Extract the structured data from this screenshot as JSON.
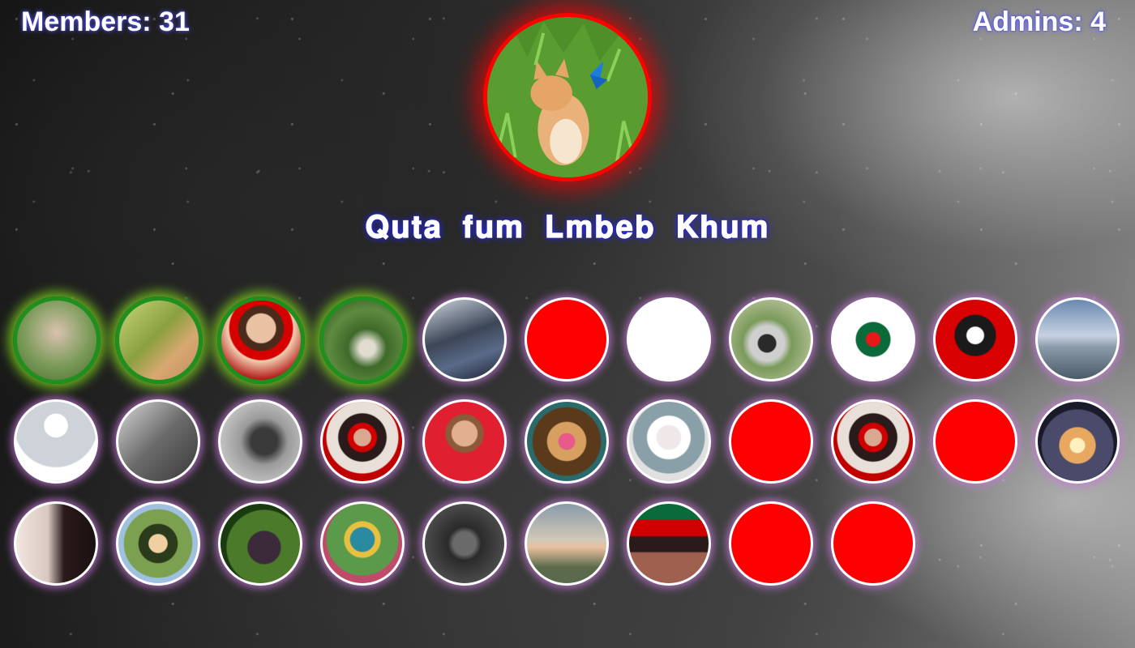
{
  "stats": {
    "members_label": "Members: 31",
    "admins_label": "Admins: 4"
  },
  "group": {
    "name": "𝐐𝐮𝐭𝐚 𝐟𝐮𝐦 𝐋𝐦𝐛𝐞𝐛 𝐊𝐡𝐮𝐦",
    "avatar_icon": "kitten-butterfly-photo-icon"
  },
  "colors": {
    "admin_ring": "#1f8f1f",
    "member_ring": "#ffffff",
    "group_ring": "#ff0000",
    "text_glow": "#2a2aff"
  },
  "admins": [
    {
      "icon": "girl-in-garden-photo"
    },
    {
      "icon": "girl-with-flower-photo"
    },
    {
      "icon": "girl-red-blindfold-photo"
    },
    {
      "icon": "girl-in-forest-photo"
    }
  ],
  "members": [
    {
      "icon": "boy-in-car-photo"
    },
    {
      "icon": "red-placeholder"
    },
    {
      "icon": "white-placeholder"
    },
    {
      "icon": "boy-outdoors-photo"
    },
    {
      "icon": "bangladesh-flag-brush"
    },
    {
      "icon": "red-masked-man-art"
    },
    {
      "icon": "beach-silhouette-photo"
    },
    {
      "icon": "default-user"
    },
    {
      "icon": "mirror-selfie-bw"
    },
    {
      "icon": "bw-portrait"
    },
    {
      "icon": "boy-red-blindfold"
    },
    {
      "icon": "man-red-shirt"
    },
    {
      "icon": "colorful-art"
    },
    {
      "icon": "anime-boy"
    },
    {
      "icon": "red-placeholder"
    },
    {
      "icon": "boy-red-blindfold"
    },
    {
      "icon": "red-placeholder"
    },
    {
      "icon": "couple-sunlight"
    },
    {
      "icon": "girl-with-flowers"
    },
    {
      "icon": "anime-girl"
    },
    {
      "icon": "hijab-girl-leaves"
    },
    {
      "icon": "girl-with-flowers-colorful"
    },
    {
      "icon": "dark-mirror-selfie"
    },
    {
      "icon": "sunset-person"
    },
    {
      "icon": "girl-red-blindfold-flag"
    },
    {
      "icon": "red-placeholder"
    },
    {
      "icon": "red-placeholder"
    }
  ]
}
